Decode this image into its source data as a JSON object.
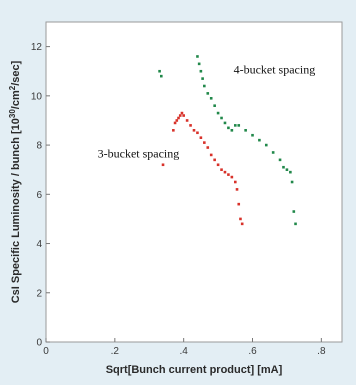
{
  "chart_data": {
    "type": "scatter",
    "title": "",
    "xlabel": "Sqrt[Bunch current product] [mA]",
    "ylabel_main": "CsI Specific Luminosity / bunch [10",
    "ylabel_exp1": "30",
    "ylabel_mid": "/cm",
    "ylabel_exp2": "2",
    "ylabel_end": "/sec]",
    "xlim": [
      0,
      0.86
    ],
    "ylim": [
      0,
      13
    ],
    "x_ticks": [
      0,
      0.2,
      0.4,
      0.6,
      0.8
    ],
    "x_tick_labels": [
      "0",
      ".2",
      ".4",
      ".6",
      ".8"
    ],
    "y_ticks": [
      0,
      2,
      4,
      6,
      8,
      10,
      12
    ],
    "y_tick_labels": [
      "0",
      "2",
      "4",
      "6",
      "8",
      "10",
      "12"
    ],
    "grid": false,
    "legend": "none",
    "annotations": [
      {
        "text": "4-bucket spacing",
        "x": 0.545,
        "y": 10.9
      },
      {
        "text": "3-bucket spacing",
        "x": 0.15,
        "y": 7.5
      }
    ],
    "series": [
      {
        "color": "#d8322a",
        "points": [
          [
            0.34,
            7.2
          ],
          [
            0.37,
            8.6
          ],
          [
            0.375,
            8.9
          ],
          [
            0.38,
            9.0
          ],
          [
            0.385,
            9.1
          ],
          [
            0.39,
            9.2
          ],
          [
            0.395,
            9.3
          ],
          [
            0.4,
            9.2
          ],
          [
            0.41,
            9.0
          ],
          [
            0.42,
            8.8
          ],
          [
            0.43,
            8.6
          ],
          [
            0.44,
            8.5
          ],
          [
            0.45,
            8.3
          ],
          [
            0.46,
            8.1
          ],
          [
            0.47,
            7.9
          ],
          [
            0.48,
            7.6
          ],
          [
            0.49,
            7.4
          ],
          [
            0.5,
            7.2
          ],
          [
            0.51,
            7.0
          ],
          [
            0.52,
            6.9
          ],
          [
            0.53,
            6.8
          ],
          [
            0.54,
            6.7
          ],
          [
            0.55,
            6.5
          ],
          [
            0.555,
            6.2
          ],
          [
            0.56,
            5.6
          ],
          [
            0.565,
            5.0
          ],
          [
            0.57,
            4.8
          ]
        ]
      },
      {
        "color": "#21884a",
        "points": [
          [
            0.33,
            11.0
          ],
          [
            0.335,
            10.8
          ],
          [
            0.44,
            11.6
          ],
          [
            0.445,
            11.3
          ],
          [
            0.45,
            11.0
          ],
          [
            0.455,
            10.7
          ],
          [
            0.46,
            10.4
          ],
          [
            0.47,
            10.1
          ],
          [
            0.48,
            9.9
          ],
          [
            0.49,
            9.6
          ],
          [
            0.5,
            9.3
          ],
          [
            0.51,
            9.1
          ],
          [
            0.52,
            8.9
          ],
          [
            0.53,
            8.7
          ],
          [
            0.54,
            8.6
          ],
          [
            0.55,
            8.8
          ],
          [
            0.56,
            8.8
          ],
          [
            0.58,
            8.6
          ],
          [
            0.6,
            8.4
          ],
          [
            0.62,
            8.2
          ],
          [
            0.64,
            8.0
          ],
          [
            0.66,
            7.7
          ],
          [
            0.68,
            7.4
          ],
          [
            0.69,
            7.1
          ],
          [
            0.7,
            7.0
          ],
          [
            0.71,
            6.9
          ],
          [
            0.715,
            6.5
          ],
          [
            0.72,
            5.3
          ],
          [
            0.725,
            4.8
          ]
        ]
      }
    ]
  }
}
